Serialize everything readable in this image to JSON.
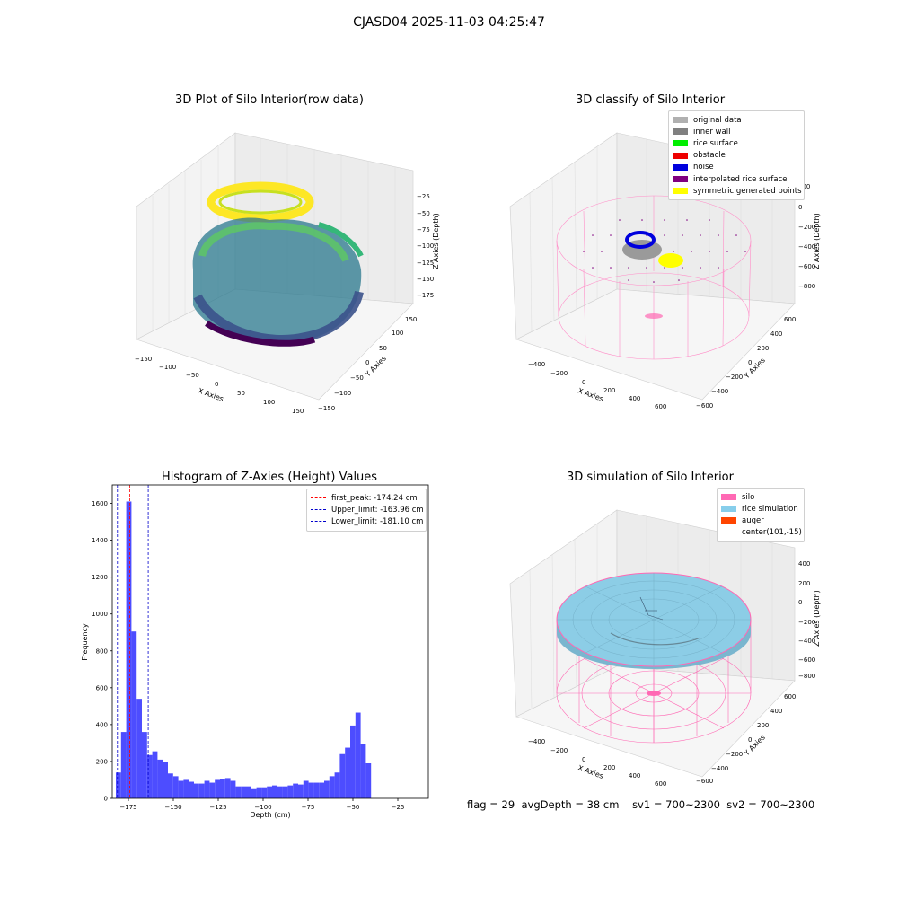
{
  "suptitle": "CJASD04 2025-11-03 04:25:47",
  "status": {
    "flag": "flag = 29",
    "avgdepth": "avgDepth = 38 cm",
    "sv1": "sv1 = 700~2300",
    "sv2": "sv2 = 700~2300"
  },
  "plots": {
    "raw": {
      "title": "3D Plot of Silo Interior(row data)",
      "xlabel": "X Axies",
      "ylabel": "Y Axies",
      "zlabel": "Z Axies (Depth)",
      "xticks": [
        "−150",
        "−100",
        "−50",
        "0",
        "50",
        "100",
        "150"
      ],
      "yticks": [
        "150",
        "100",
        "50",
        "0",
        "−50",
        "−100",
        "−150"
      ],
      "zticks": [
        "−25",
        "−50",
        "−75",
        "−100",
        "−125",
        "−150",
        "−175"
      ]
    },
    "classify": {
      "title": "3D classify of Silo Interior",
      "xlabel": "X Axies",
      "ylabel": "Y Axies",
      "zlabel": "Z Axies (Depth)",
      "xticks": [
        "−400",
        "−200",
        "0",
        "200",
        "400",
        "600"
      ],
      "yticks": [
        "600",
        "400",
        "200",
        "0",
        "−200",
        "−400",
        "−600"
      ],
      "zticks": [
        "200",
        "0",
        "−200",
        "−400",
        "−600",
        "−800"
      ],
      "legend": [
        {
          "label": "original data",
          "color": "#b0b0b0"
        },
        {
          "label": "inner wall",
          "color": "#808080"
        },
        {
          "label": "rice surface",
          "color": "#00ee00"
        },
        {
          "label": "obstacle",
          "color": "#ee0000"
        },
        {
          "label": "noise",
          "color": "#0000dd"
        },
        {
          "label": "interpolated rice surface",
          "color": "#800080"
        },
        {
          "label": "symmetric generated points",
          "color": "#ffff00"
        }
      ]
    },
    "histogram": {
      "title": "Histogram of Z-Axies (Height) Values",
      "xlabel": "Depth (cm)",
      "ylabel": "Frequency",
      "legend": [
        {
          "label": "first_peak: -174.24 cm",
          "color": "#ff0000"
        },
        {
          "label": "Upper_limit: -163.96 cm",
          "color": "#0000cc"
        },
        {
          "label": "Lower_limit: -181.10 cm",
          "color": "#0000cc"
        }
      ]
    },
    "simulation": {
      "title": "3D simulation of Silo Interior",
      "xlabel": "X Axies",
      "ylabel": "Y Axies",
      "zlabel": "Z Axies (Depth)",
      "xticks": [
        "−400",
        "−200",
        "0",
        "200",
        "400",
        "600"
      ],
      "yticks": [
        "600",
        "400",
        "200",
        "0",
        "−200",
        "−400",
        "−600"
      ],
      "zticks": [
        "400",
        "200",
        "0",
        "−200",
        "−400",
        "−600",
        "−800"
      ],
      "legend": [
        {
          "label": "silo",
          "color": "#ff69b4"
        },
        {
          "label": "rice simulation",
          "color": "#87ceeb"
        },
        {
          "label": "auger",
          "color": "#ff4500"
        },
        {
          "label": "center(101,-15)",
          "color": ""
        }
      ]
    }
  },
  "chart_data": [
    {
      "type": "bar",
      "title": "Histogram of Z-Axies (Height) Values",
      "xlabel": "Depth (cm)",
      "ylabel": "Frequency",
      "xlim": [
        -184,
        -8
      ],
      "ylim": [
        0,
        1700
      ],
      "xticks": [
        -175,
        -150,
        -125,
        -100,
        -75,
        -50,
        -25
      ],
      "yticks": [
        0,
        200,
        400,
        600,
        800,
        1000,
        1200,
        1400,
        1600
      ],
      "bin_start": -182,
      "bin_width": 2.9,
      "values": [
        140,
        360,
        1610,
        905,
        540,
        360,
        235,
        255,
        210,
        195,
        135,
        120,
        95,
        100,
        90,
        80,
        80,
        95,
        85,
        100,
        105,
        110,
        95,
        65,
        65,
        65,
        50,
        60,
        60,
        65,
        70,
        65,
        65,
        70,
        80,
        75,
        95,
        85,
        85,
        85,
        95,
        120,
        140,
        240,
        275,
        395,
        465,
        295,
        190
      ],
      "vlines": [
        {
          "name": "first_peak: -174.24 cm",
          "x": -174.24,
          "color": "#ff0000"
        },
        {
          "name": "Upper_limit: -163.96 cm",
          "x": -163.96,
          "color": "#0000cc"
        },
        {
          "name": "Lower_limit: -181.10 cm",
          "x": -181.1,
          "color": "#0000cc"
        }
      ],
      "bar_color": "#4d4dff",
      "legend_position": "top-right"
    }
  ]
}
